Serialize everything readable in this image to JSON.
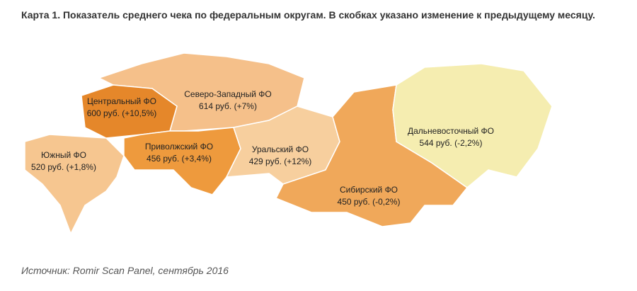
{
  "title": "Карта 1. Показатель среднего чека по федеральным округам. В скобках указано изменение к предыдущему месяцу.",
  "regions": [
    {
      "name": "Центральный ФО",
      "value": "600 руб. (+10,5%)"
    },
    {
      "name": "Северо-Западный ФО",
      "value": "614 руб. (+7%)"
    },
    {
      "name": "Южный ФО",
      "value": "520 руб. (+1,8%)"
    },
    {
      "name": "Приволжский ФО",
      "value": "456 руб. (+3,4%)"
    },
    {
      "name": "Уральский ФО",
      "value": "429 руб. (+12%)"
    },
    {
      "name": "Сибирский ФО",
      "value": "450 руб. (-0,2%)"
    },
    {
      "name": "Дальневосточный ФО",
      "value": "544 руб. (-2,2%)"
    }
  ],
  "source": "Источник: Romir Scan Panel, сентябрь 2016"
}
